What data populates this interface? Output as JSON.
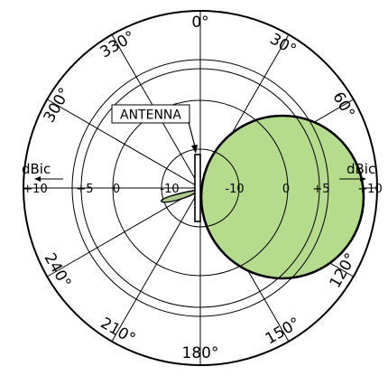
{
  "angle_labels": [
    {
      "text": "0°",
      "angle": 0
    },
    {
      "text": "30°",
      "angle": 30
    },
    {
      "text": "60°",
      "angle": 60
    },
    {
      "text": "120°",
      "angle": 120
    },
    {
      "text": "150°",
      "angle": 150
    },
    {
      "text": "180°",
      "angle": 180
    },
    {
      "text": "210°",
      "angle": 210
    },
    {
      "text": "240°",
      "angle": 240
    },
    {
      "text": "300°",
      "angle": 300
    },
    {
      "text": "330°",
      "angle": 330
    }
  ],
  "left_unit": "dBic",
  "right_unit": "dBic",
  "left_scale": [
    "+10",
    "+5",
    "0",
    "-10"
  ],
  "right_scale": [
    "-10",
    "0",
    "+5",
    "+10"
  ],
  "antenna_label": "ANTENNA",
  "colors": {
    "main_lobe_fill": "#b5dc8c",
    "back_lobe_fill": "#a9c889",
    "line": "#000000"
  }
}
